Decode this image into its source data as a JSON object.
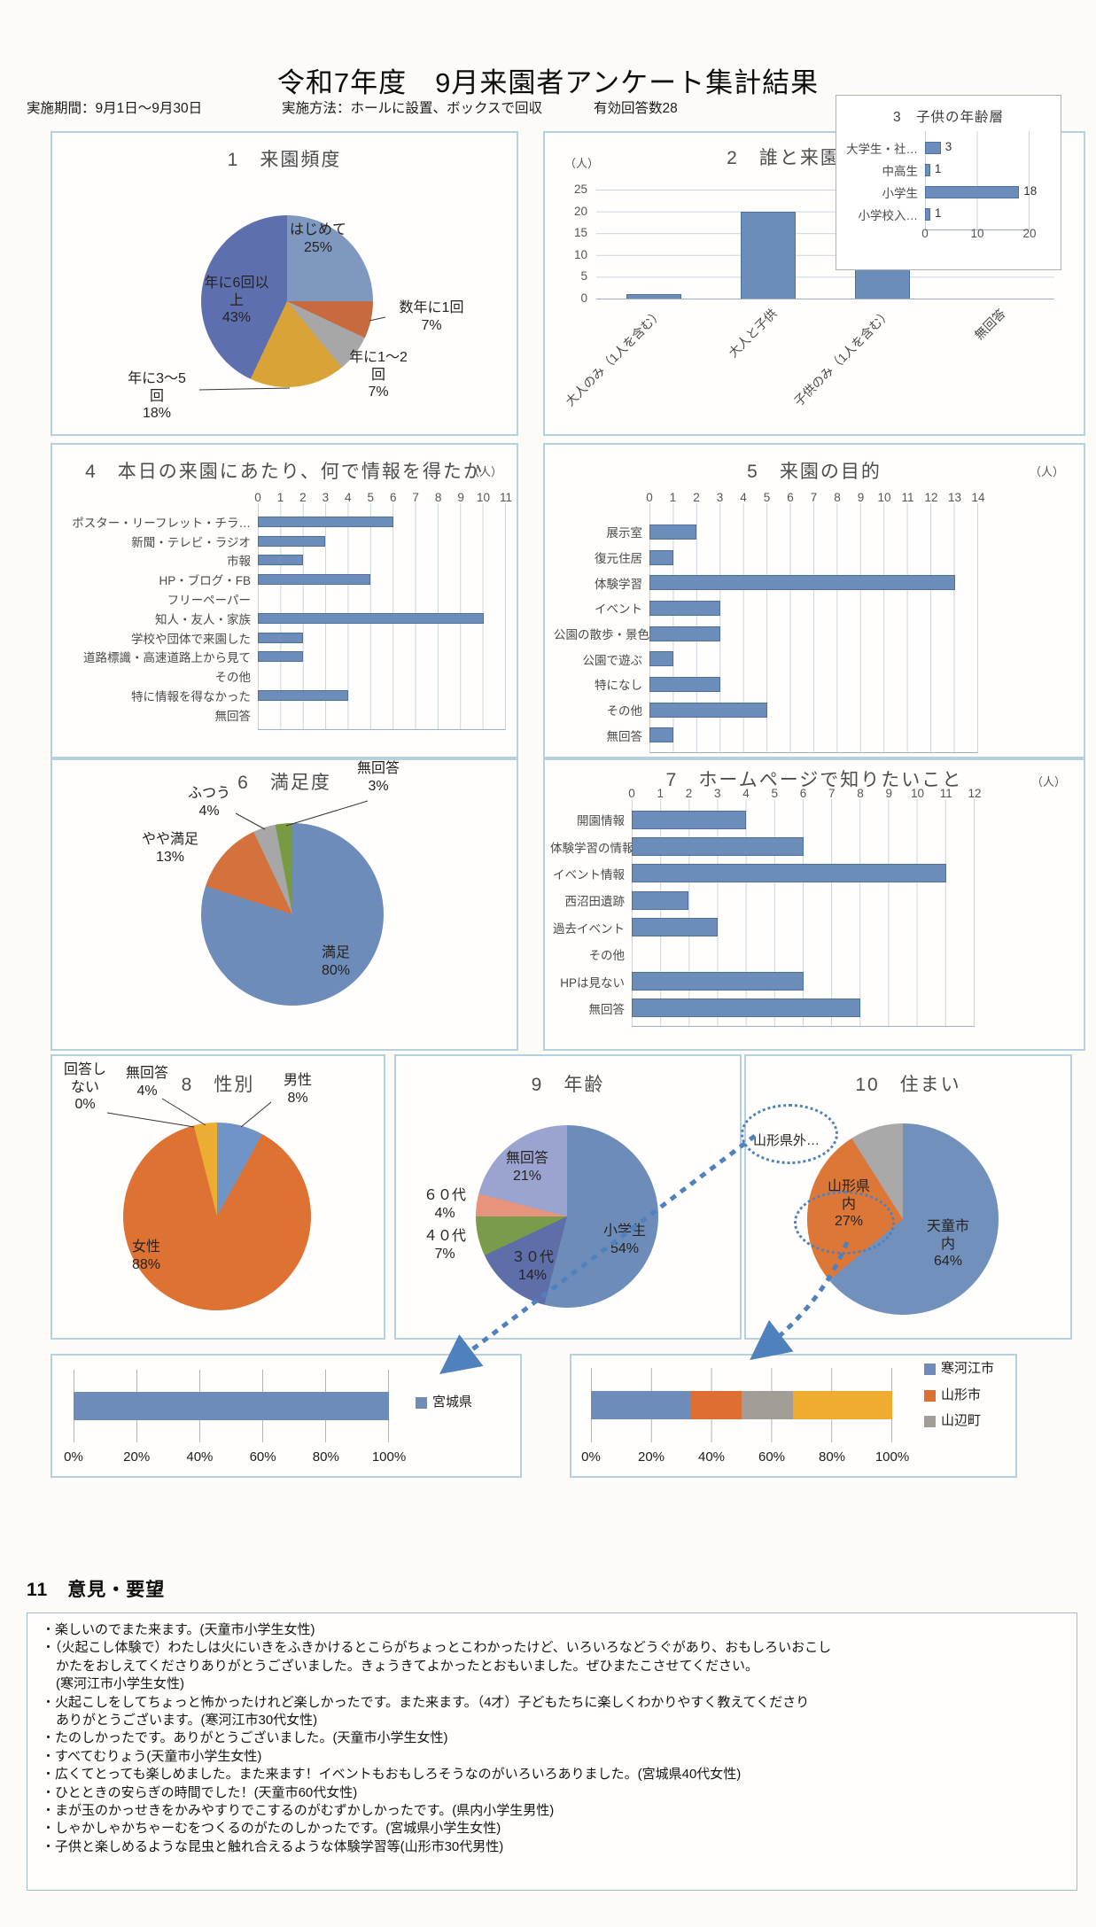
{
  "page": {
    "title": "令和7年度　9月来園者アンケート集計結果",
    "period_label": "実施期間：9月1日～9月30日",
    "method_label": "実施方法：ホールに設置、ボックスで回収",
    "valid_responses_label": "有効回答数28"
  },
  "accent_colors": {
    "bar_blue": "#6c8cba",
    "panel_border_blue": "#b6d0de",
    "annotation_blue": "#4f81bd"
  },
  "chart_data": [
    {
      "type": "pie",
      "title": "1　来園頻度",
      "slices": [
        {
          "name": "はじめて",
          "pct": 25,
          "color": "#7e98bf",
          "label_lines": [
            "はじめて",
            "25%"
          ]
        },
        {
          "name": "数年に1回",
          "pct": 7,
          "color": "#c66b40",
          "label_lines": [
            "数年に1回",
            "7%"
          ]
        },
        {
          "name": "年に1～2回",
          "pct": 7,
          "color": "#a7a7a7",
          "label_lines": [
            "年に1～2",
            "回",
            "7%"
          ]
        },
        {
          "name": "年に3～5回",
          "pct": 18,
          "color": "#d9a338",
          "label_lines": [
            "年に3～5",
            "回",
            "18%"
          ]
        },
        {
          "name": "年に6回以上",
          "pct": 43,
          "color": "#5e6fb0",
          "label_lines": [
            "年に6回以",
            "上",
            "43%"
          ]
        }
      ]
    },
    {
      "type": "bar",
      "title": "2　誰と来園したか",
      "unit": "（人）",
      "ymax": 25,
      "yticks": [
        25,
        20,
        15,
        10,
        5,
        0
      ],
      "categories": [
        "大人のみ（1人を含む）",
        "大人と子供",
        "子供のみ（1人を含む）",
        "無回答"
      ],
      "values": [
        1,
        20,
        7,
        0
      ]
    },
    {
      "type": "bar",
      "title": "3　子供の年齢層",
      "xmax": 20,
      "ticks": [
        0,
        10,
        20
      ],
      "ticks_bottom": true,
      "show_values": true,
      "categories": [
        "大学生・社…",
        "中高生",
        "小学生",
        "小学校入…"
      ],
      "values": [
        3,
        1,
        18,
        1
      ]
    },
    {
      "type": "bar",
      "title": "4　本日の来園にあたり、何で情報を得たか",
      "unit": "（人）",
      "xmax": 11,
      "ticks": [
        0,
        1,
        2,
        3,
        4,
        5,
        6,
        7,
        8,
        9,
        10,
        11
      ],
      "categories": [
        "ポスター・リーフレット・チラ…",
        "新聞・テレビ・ラジオ",
        "市報",
        "HP・ブログ・FB",
        "フリーペーパー",
        "知人・友人・家族",
        "学校や団体で来園した",
        "道路標識・高速道路上から見て",
        "その他",
        "特に情報を得なかった",
        "無回答"
      ],
      "values": [
        6,
        3,
        2,
        5,
        0,
        10,
        2,
        2,
        0,
        4,
        0
      ]
    },
    {
      "type": "bar",
      "title": "5　来園の目的",
      "unit": "（人）",
      "xmax": 14,
      "ticks": [
        0,
        1,
        2,
        3,
        4,
        5,
        6,
        7,
        8,
        9,
        10,
        11,
        12,
        13,
        14
      ],
      "categories": [
        "展示室",
        "復元住居",
        "体験学習",
        "イベント",
        "公園の散歩・景色",
        "公園で遊ぶ",
        "特になし",
        "その他",
        "無回答"
      ],
      "values": [
        2,
        1,
        13,
        3,
        3,
        1,
        3,
        5,
        1
      ]
    },
    {
      "type": "pie",
      "title": "6　満足度",
      "slices": [
        {
          "name": "満足",
          "pct": 80,
          "color": "#6d8cba",
          "label_lines": [
            "満足",
            "80%"
          ]
        },
        {
          "name": "やや満足",
          "pct": 13,
          "color": "#d4713c",
          "label_lines": [
            "やや満足",
            "13%"
          ]
        },
        {
          "name": "ふつう",
          "pct": 4,
          "color": "#a7a7a7",
          "label_lines": [
            "ふつう",
            "4%"
          ]
        },
        {
          "name": "無回答",
          "pct": 3,
          "color": "#789a42",
          "label_lines": [
            "無回答",
            "3%"
          ]
        }
      ]
    },
    {
      "type": "bar",
      "title": "7　ホームページで知りたいこと",
      "unit": "（人）",
      "xmax": 12,
      "ticks": [
        0,
        1,
        2,
        3,
        4,
        5,
        6,
        7,
        8,
        9,
        10,
        11,
        12
      ],
      "categories": [
        "開園情報",
        "体験学習の情報",
        "イベント情報",
        "西沼田遺跡",
        "過去イベント",
        "その他",
        "HPは見ない",
        "無回答"
      ],
      "values": [
        4,
        6,
        11,
        2,
        3,
        0,
        6,
        8
      ]
    },
    {
      "type": "pie",
      "title": "8　性別",
      "slices": [
        {
          "name": "男性",
          "pct": 8,
          "color": "#7094c6",
          "label_lines": [
            "男性",
            "8%"
          ]
        },
        {
          "name": "女性",
          "pct": 88,
          "color": "#dd7232",
          "label_lines": [
            "女性",
            "88%"
          ]
        },
        {
          "name": "回答しない",
          "pct": 0,
          "color": "#d9d9d9",
          "label_lines": [
            "回答し",
            "ない",
            "0%"
          ]
        },
        {
          "name": "無回答",
          "pct": 4,
          "color": "#ecad33",
          "label_lines": [
            "無回答",
            "4%"
          ]
        }
      ]
    },
    {
      "type": "pie",
      "title": "9　年齢",
      "slices": [
        {
          "name": "小学生",
          "pct": 54,
          "color": "#6d8cba",
          "label_lines": [
            "小学生",
            "54%"
          ]
        },
        {
          "name": "３０代",
          "pct": 14,
          "color": "#5d6ea9",
          "label_lines": [
            "３０代",
            "14%"
          ]
        },
        {
          "name": "４０代",
          "pct": 7,
          "color": "#7a9b4a",
          "label_lines": [
            "４０代",
            "7%"
          ]
        },
        {
          "name": "６０代",
          "pct": 4,
          "color": "#e8937b",
          "label_lines": [
            "６０代",
            "4%"
          ]
        },
        {
          "name": "無回答",
          "pct": 21,
          "color": "#9ba4d1",
          "label_lines": [
            "無回答",
            "21%"
          ]
        }
      ]
    },
    {
      "type": "pie",
      "title": "10　住まい",
      "slices": [
        {
          "name": "天童市内",
          "pct": 64,
          "color": "#7191bc",
          "label_lines": [
            "天童市",
            "内",
            "64%"
          ]
        },
        {
          "name": "山形県内",
          "pct": 27,
          "color": "#dd7737",
          "label_lines": [
            "山形県",
            "内",
            "27%"
          ]
        },
        {
          "name": "山形県外",
          "pct": 9,
          "color": "#a9a9a9",
          "label_lines": [
            "山形県外…"
          ]
        }
      ]
    },
    {
      "type": "bar",
      "title": "",
      "ticks": [
        "0%",
        "20%",
        "40%",
        "60%",
        "80%",
        "100%"
      ],
      "segments": [
        {
          "label": "宮城県",
          "pct": 100,
          "color": "#6d8cba"
        }
      ],
      "legend": [
        {
          "label": "宮城県",
          "color": "#6d8cba"
        }
      ]
    },
    {
      "type": "bar",
      "title": "",
      "ticks": [
        "0%",
        "20%",
        "40%",
        "60%",
        "80%",
        "100%"
      ],
      "segments": [
        {
          "label": "寒河江市",
          "pct": 33,
          "color": "#6d8cba"
        },
        {
          "label": "山形市",
          "pct": 17,
          "color": "#dd7031"
        },
        {
          "label": "山辺町",
          "pct": 17,
          "color": "#a39d97"
        },
        {
          "label": "",
          "pct": 33,
          "color": "#f0ac31"
        }
      ],
      "legend": [
        {
          "label": "寒河江市",
          "color": "#6d8cba"
        },
        {
          "label": "山形市",
          "color": "#dd7031"
        },
        {
          "label": "山辺町",
          "color": "#a39d97"
        }
      ]
    }
  ],
  "opinions": {
    "title": "11　意見・要望",
    "items": [
      "楽しいのでまた来ます。(天童市小学生女性)",
      "（火起こし体験で）わたしは火にいきをふきかけるとこらがちょっとこわかったけど、いろいろなどうぐがあり、おもしろいおこし\nかたをおしえてくださりありがとうございました。きょうきてよかったとおもいました。ぜひまたこさせてください。\n(寒河江市小学生女性)",
      "火起こしをしてちょっと怖かったけれど楽しかったです。また来ます。（4才）子どもたちに楽しくわかりやすく教えてくださり\nありがとうございます。(寒河江市30代女性)",
      "たのしかったです。ありがとうございました。(天童市小学生女性)",
      "すべてむりょう(天童市小学生女性)",
      "広くてとっても楽しめました。また来ます！イベントもおもしろそうなのがいろいろありました。(宮城県40代女性)",
      "ひとときの安らぎの時間でした！(天童市60代女性)",
      "まが玉のかっせきをかみやすりでこするのがむずかしかったです。(県内小学生男性)",
      "しゃかしゃかちゃーむをつくるのがたのしかったです。(宮城県小学生女性)",
      "子供と楽しめるような昆虫と触れ合えるような体験学習等(山形市30代男性)"
    ]
  }
}
